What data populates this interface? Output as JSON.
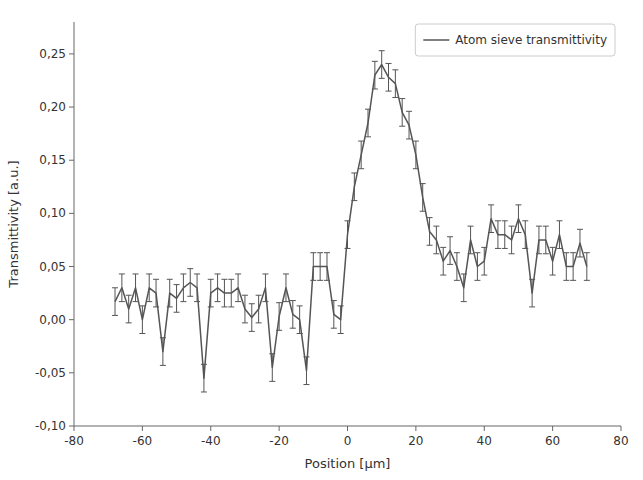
{
  "chart_data": {
    "type": "line",
    "x": [
      -68,
      -66,
      -64,
      -62,
      -60,
      -58,
      -56,
      -54,
      -52,
      -50,
      -48,
      -46,
      -44,
      -42,
      -40,
      -38,
      -36,
      -34,
      -32,
      -30,
      -28,
      -26,
      -24,
      -22,
      -20,
      -18,
      -16,
      -14,
      -12,
      -10,
      -8,
      -6,
      -4,
      -2,
      0,
      2,
      4,
      6,
      8,
      10,
      12,
      14,
      16,
      18,
      20,
      22,
      24,
      26,
      28,
      30,
      32,
      34,
      36,
      38,
      40,
      42,
      44,
      46,
      48,
      50,
      52,
      54,
      56,
      58,
      60,
      62,
      64,
      66,
      68,
      70
    ],
    "series": [
      {
        "name": "Atom sieve transmittivity",
        "color": "#555555",
        "values": [
          0.017,
          0.03,
          0.01,
          0.03,
          0.0,
          0.03,
          0.025,
          -0.03,
          0.025,
          0.02,
          0.03,
          0.035,
          0.03,
          -0.055,
          0.025,
          0.03,
          0.025,
          0.025,
          0.03,
          0.01,
          0.002,
          0.01,
          0.03,
          -0.045,
          0.003,
          0.03,
          0.005,
          0.0,
          -0.048,
          0.05,
          0.05,
          0.05,
          0.005,
          0.0,
          0.08,
          0.125,
          0.155,
          0.185,
          0.23,
          0.24,
          0.228,
          0.222,
          0.195,
          0.183,
          0.155,
          0.115,
          0.083,
          0.075,
          0.055,
          0.065,
          0.05,
          0.03,
          0.075,
          0.05,
          0.055,
          0.095,
          0.08,
          0.08,
          0.075,
          0.095,
          0.08,
          0.025,
          0.075,
          0.075,
          0.055,
          0.08,
          0.05,
          0.05,
          0.072,
          0.05
        ],
        "yerr": [
          0.013,
          0.013,
          0.013,
          0.013,
          0.013,
          0.013,
          0.013,
          0.013,
          0.013,
          0.013,
          0.013,
          0.013,
          0.013,
          0.013,
          0.013,
          0.013,
          0.013,
          0.013,
          0.013,
          0.013,
          0.013,
          0.013,
          0.013,
          0.013,
          0.013,
          0.013,
          0.013,
          0.013,
          0.013,
          0.013,
          0.013,
          0.013,
          0.013,
          0.013,
          0.013,
          0.013,
          0.013,
          0.013,
          0.013,
          0.013,
          0.013,
          0.013,
          0.013,
          0.013,
          0.013,
          0.013,
          0.013,
          0.013,
          0.013,
          0.013,
          0.013,
          0.013,
          0.013,
          0.013,
          0.013,
          0.013,
          0.013,
          0.013,
          0.013,
          0.013,
          0.013,
          0.013,
          0.013,
          0.013,
          0.013,
          0.013,
          0.013,
          0.013,
          0.013,
          0.013
        ]
      }
    ],
    "xlabel": "Position [μm]",
    "ylabel": "Transmittivity [a.u.]",
    "xlim": [
      -80,
      80
    ],
    "ylim": [
      -0.1,
      0.28
    ],
    "xticks": [
      -80,
      -60,
      -40,
      -20,
      0,
      20,
      40,
      60,
      80
    ],
    "yticks": [
      {
        "value": -0.1,
        "label": "-0,10"
      },
      {
        "value": -0.05,
        "label": "-0,05"
      },
      {
        "value": 0.0,
        "label": "0,00"
      },
      {
        "value": 0.05,
        "label": "0,05"
      },
      {
        "value": 0.1,
        "label": "0,10"
      },
      {
        "value": 0.15,
        "label": "0,15"
      },
      {
        "value": 0.2,
        "label": "0,20"
      },
      {
        "value": 0.25,
        "label": "0,25"
      }
    ],
    "legend": "upper right",
    "grid": false
  }
}
